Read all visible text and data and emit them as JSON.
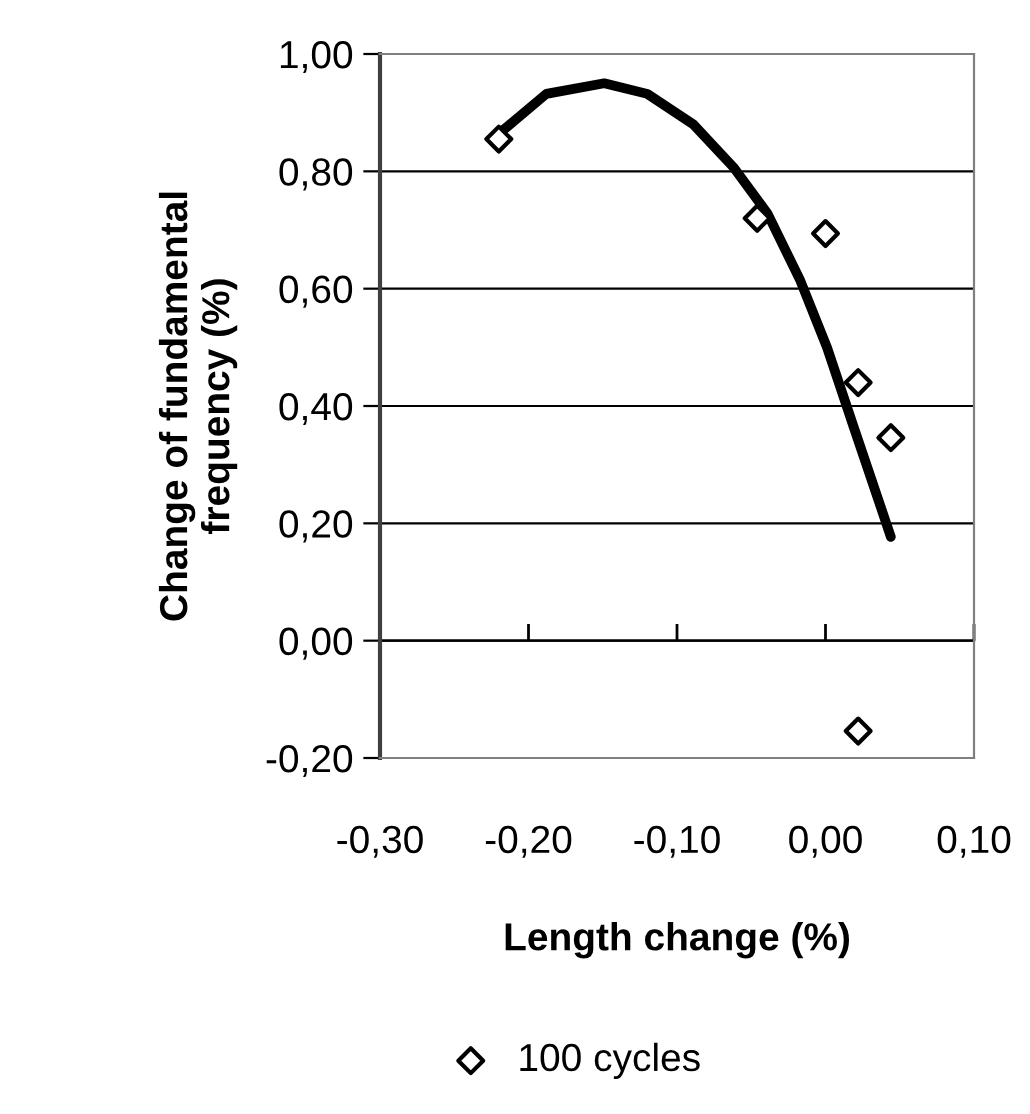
{
  "chart_data": {
    "type": "scatter",
    "xlabel": "Length change (%)",
    "ylabel": "Change of fundamental\nfrequency (%)",
    "series": [
      {
        "name": "100 cycles",
        "color": "#000000",
        "marker": "diamond",
        "x": [
          -0.22,
          -0.046,
          0.0,
          0.022,
          0.044,
          0.022
        ],
        "values": [
          0.855,
          0.72,
          0.694,
          0.44,
          0.346,
          -0.154
        ]
      },
      {
        "type": "line",
        "color": "#000000",
        "marker": "none",
        "x": [
          -0.22,
          -0.188,
          -0.149,
          -0.12,
          -0.089,
          -0.062,
          -0.039,
          -0.017,
          0.001,
          0.019,
          0.044
        ],
        "values": [
          0.864,
          0.932,
          0.95,
          0.932,
          0.88,
          0.807,
          0.728,
          0.614,
          0.5,
          0.364,
          0.177
        ]
      }
    ],
    "xlim": [
      -0.3,
      0.1
    ],
    "xticks": [
      {
        "value": -0.3,
        "label": "-0,30"
      },
      {
        "value": -0.2,
        "label": "-0,20"
      },
      {
        "value": -0.1,
        "label": "-0,10"
      },
      {
        "value": 0,
        "label": "0,00"
      },
      {
        "value": 0.1,
        "label": "0,10"
      }
    ],
    "ylim": [
      -0.2,
      1.0
    ],
    "yticks": [
      {
        "value": -0.2,
        "label": "-0,20"
      },
      {
        "value": 0,
        "label": "0,00"
      },
      {
        "value": 0.2,
        "label": "0,20"
      },
      {
        "value": 0.4,
        "label": "0,40"
      },
      {
        "value": 0.6,
        "label": "0,60"
      },
      {
        "value": 0.8,
        "label": "0,80"
      },
      {
        "value": 1.0,
        "label": "1,00"
      }
    ],
    "grid": "y",
    "legend": "bottom"
  }
}
